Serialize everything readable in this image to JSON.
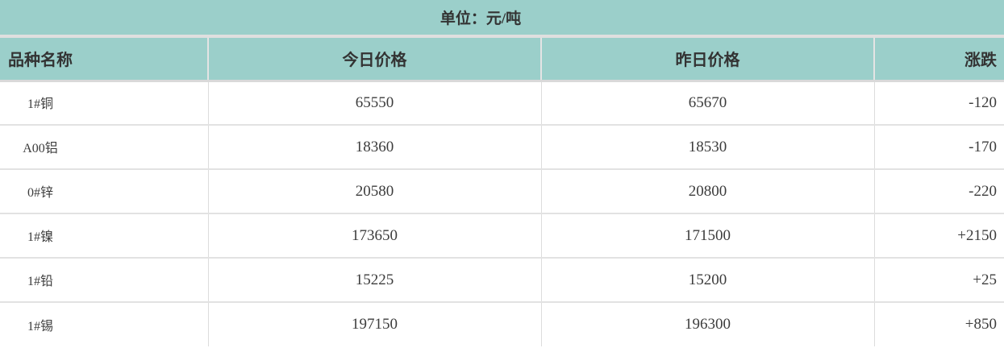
{
  "title_bar": {
    "unit_label": "单位：元/吨"
  },
  "table": {
    "headers": {
      "name": "品种名称",
      "today": "今日价格",
      "yesterday": "昨日价格",
      "change": "涨跌"
    },
    "rows": [
      {
        "name": "1#铜",
        "today": "65550",
        "yesterday": "65670",
        "change": "-120"
      },
      {
        "name": "A00铝",
        "today": "18360",
        "yesterday": "18530",
        "change": "-170"
      },
      {
        "name": "0#锌",
        "today": "20580",
        "yesterday": "20800",
        "change": "-220"
      },
      {
        "name": "1#镍",
        "today": "173650",
        "yesterday": "171500",
        "change": "+2150"
      },
      {
        "name": "1#铅",
        "today": "15225",
        "yesterday": "15200",
        "change": "+25"
      },
      {
        "name": "1#锡",
        "today": "197150",
        "yesterday": "196300",
        "change": "+850"
      }
    ]
  },
  "colors": {
    "teal": "#9bcfca",
    "gap_gray": "#dfdfdf",
    "divider_body": "#dcdcdc",
    "divider_header": "#e4e4e4",
    "row_divider": "#e2e2e2",
    "text": "#333333",
    "num_text": "#3c3c3c"
  },
  "chart_data": {
    "type": "table",
    "title": "单位：元/吨",
    "columns": [
      "品种名称",
      "今日价格",
      "昨日价格",
      "涨跌"
    ],
    "rows": [
      [
        "1#铜",
        65550,
        65670,
        -120
      ],
      [
        "A00铝",
        18360,
        18530,
        -170
      ],
      [
        "0#锌",
        20580,
        20800,
        -220
      ],
      [
        "1#镍",
        173650,
        171500,
        2150
      ],
      [
        "1#铅",
        15225,
        15200,
        25
      ],
      [
        "1#锡",
        197150,
        196300,
        850
      ]
    ]
  }
}
